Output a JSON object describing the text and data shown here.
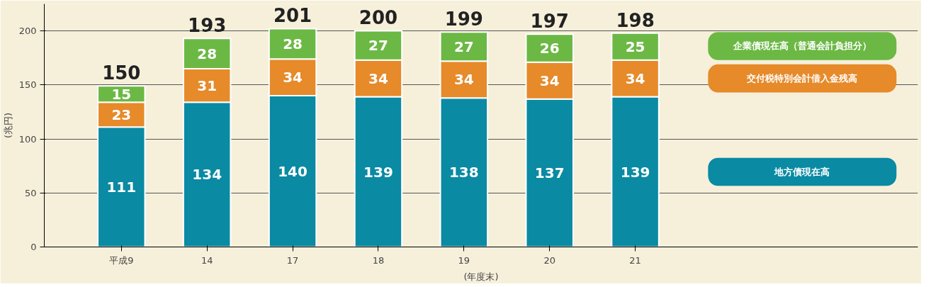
{
  "chart_data": {
    "type": "bar",
    "stacked": true,
    "ylabel": "(兆円)",
    "xlabel": "(年度末)",
    "categories": [
      "平成9",
      "14",
      "17",
      "18",
      "19",
      "20",
      "21"
    ],
    "series": [
      {
        "name": "地方債現在高",
        "color": "#0a8aa3",
        "values": [
          111,
          134,
          140,
          139,
          138,
          137,
          139
        ]
      },
      {
        "name": "交付税特別会計借入金残高",
        "color": "#e68a2a",
        "values": [
          23,
          31,
          34,
          34,
          34,
          34,
          34
        ]
      },
      {
        "name": "企業債現在高（普通会計負担分）",
        "color": "#6cb844",
        "values": [
          15,
          28,
          28,
          27,
          27,
          26,
          25
        ]
      }
    ],
    "totals": [
      "150",
      "193",
      "201",
      "200",
      "199",
      "197",
      "198"
    ],
    "data_labels": true,
    "ylim": [
      0,
      225
    ],
    "yticks": [
      0,
      50,
      100,
      150,
      200
    ],
    "grid": "y",
    "legend": "right"
  }
}
